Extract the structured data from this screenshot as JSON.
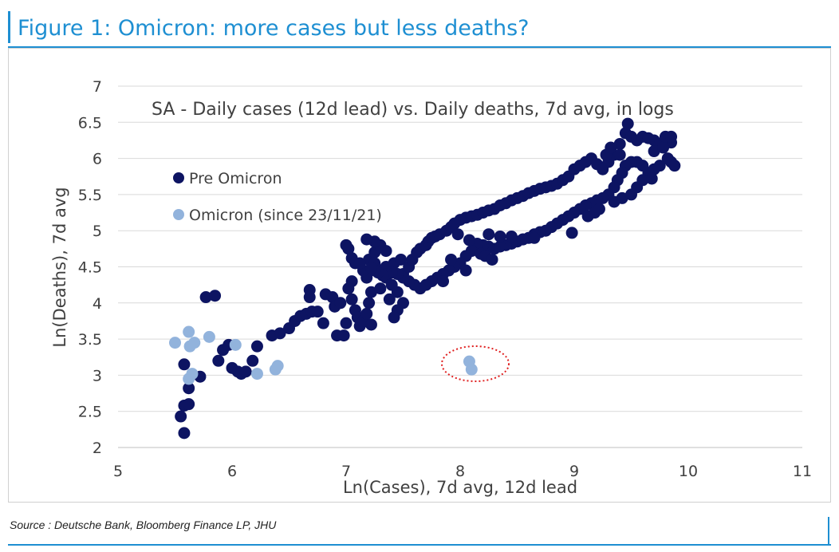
{
  "figure": {
    "title": "Figure 1: Omicron: more cases but less deaths?",
    "source": "Source : Deutsche Bank, Bloomberg Finance LP, JHU"
  },
  "colors": {
    "accent": "#1e8fd2",
    "pre_omicron": "#0d1462",
    "omicron": "#92b3dc",
    "grid": "#d9d9d9",
    "ellipse": "#e02020"
  },
  "chart_data": {
    "type": "scatter",
    "title": "SA - Daily cases (12d lead) vs. Daily deaths, 7d avg, in logs",
    "xlabel": "Ln(Cases), 7d avg, 12d lead",
    "ylabel": "Ln(Deaths), 7d avg",
    "xlim": [
      5,
      11
    ],
    "ylim": [
      2,
      7
    ],
    "xticks": [
      "5",
      "6",
      "7",
      "8",
      "9",
      "10",
      "11"
    ],
    "yticks": [
      "2",
      "2.5",
      "3",
      "3.5",
      "4",
      "4.5",
      "5",
      "5.5",
      "6",
      "6.5",
      "7"
    ],
    "grid": "horizontal",
    "legend_position": "upper-left",
    "annotation": "dotted ellipse around two Omicron points near x=8.1, y=3.1",
    "series": [
      {
        "name": "Pre Omicron",
        "color": "#0d1462",
        "points": [
          [
            5.58,
            2.2
          ],
          [
            5.55,
            2.43
          ],
          [
            5.58,
            2.58
          ],
          [
            5.62,
            2.6
          ],
          [
            5.62,
            2.82
          ],
          [
            5.72,
            2.98
          ],
          [
            5.58,
            3.15
          ],
          [
            5.77,
            4.08
          ],
          [
            5.85,
            4.1
          ],
          [
            5.88,
            3.2
          ],
          [
            5.92,
            3.35
          ],
          [
            5.97,
            3.42
          ],
          [
            6.0,
            3.1
          ],
          [
            6.05,
            3.05
          ],
          [
            6.08,
            3.02
          ],
          [
            6.12,
            3.05
          ],
          [
            6.18,
            3.2
          ],
          [
            6.22,
            3.4
          ],
          [
            6.35,
            3.55
          ],
          [
            6.42,
            3.58
          ],
          [
            6.5,
            3.65
          ],
          [
            6.55,
            3.75
          ],
          [
            6.6,
            3.82
          ],
          [
            6.65,
            3.85
          ],
          [
            6.7,
            3.88
          ],
          [
            6.75,
            3.88
          ],
          [
            6.68,
            4.18
          ],
          [
            6.68,
            4.08
          ],
          [
            6.8,
            3.72
          ],
          [
            6.82,
            4.12
          ],
          [
            6.88,
            4.08
          ],
          [
            6.9,
            3.95
          ],
          [
            6.92,
            3.55
          ],
          [
            6.98,
            3.55
          ],
          [
            6.95,
            4.0
          ],
          [
            7.0,
            3.72
          ],
          [
            7.0,
            4.8
          ],
          [
            7.02,
            4.75
          ],
          [
            7.05,
            4.62
          ],
          [
            7.08,
            4.55
          ],
          [
            7.05,
            4.3
          ],
          [
            7.02,
            4.2
          ],
          [
            7.05,
            4.05
          ],
          [
            7.08,
            3.9
          ],
          [
            7.1,
            3.8
          ],
          [
            7.12,
            3.68
          ],
          [
            7.15,
            3.75
          ],
          [
            7.18,
            3.85
          ],
          [
            7.2,
            4.0
          ],
          [
            7.22,
            4.15
          ],
          [
            7.18,
            4.35
          ],
          [
            7.15,
            4.45
          ],
          [
            7.2,
            4.6
          ],
          [
            7.25,
            4.7
          ],
          [
            7.3,
            4.8
          ],
          [
            7.35,
            4.72
          ],
          [
            7.25,
            4.55
          ],
          [
            7.3,
            4.45
          ],
          [
            7.35,
            4.35
          ],
          [
            7.4,
            4.25
          ],
          [
            7.45,
            4.15
          ],
          [
            7.5,
            4.0
          ],
          [
            7.45,
            3.9
          ],
          [
            7.42,
            3.8
          ],
          [
            7.38,
            4.05
          ],
          [
            7.3,
            4.2
          ],
          [
            7.22,
            3.7
          ],
          [
            7.25,
            4.85
          ],
          [
            7.18,
            4.88
          ],
          [
            7.12,
            4.55
          ],
          [
            7.35,
            4.5
          ],
          [
            7.42,
            4.55
          ],
          [
            7.48,
            4.6
          ],
          [
            7.5,
            4.4
          ],
          [
            7.55,
            4.5
          ],
          [
            7.58,
            4.6
          ],
          [
            7.62,
            4.7
          ],
          [
            7.65,
            4.75
          ],
          [
            7.7,
            4.8
          ],
          [
            7.72,
            4.85
          ],
          [
            7.75,
            4.9
          ],
          [
            7.78,
            4.92
          ],
          [
            7.82,
            4.95
          ],
          [
            7.88,
            5.0
          ],
          [
            7.92,
            5.05
          ],
          [
            7.95,
            5.1
          ],
          [
            8.0,
            5.15
          ],
          [
            8.05,
            5.18
          ],
          [
            8.1,
            5.2
          ],
          [
            8.15,
            5.22
          ],
          [
            8.2,
            5.25
          ],
          [
            8.25,
            5.28
          ],
          [
            8.3,
            5.3
          ],
          [
            8.35,
            5.35
          ],
          [
            8.4,
            5.38
          ],
          [
            8.45,
            5.42
          ],
          [
            8.5,
            5.45
          ],
          [
            8.55,
            5.48
          ],
          [
            8.6,
            5.52
          ],
          [
            8.65,
            5.55
          ],
          [
            8.7,
            5.58
          ],
          [
            8.75,
            5.6
          ],
          [
            8.8,
            5.62
          ],
          [
            8.85,
            5.65
          ],
          [
            8.9,
            5.7
          ],
          [
            8.95,
            5.75
          ],
          [
            9.0,
            5.85
          ],
          [
            9.05,
            5.9
          ],
          [
            9.1,
            5.95
          ],
          [
            9.15,
            6.0
          ],
          [
            9.2,
            5.92
          ],
          [
            9.25,
            5.85
          ],
          [
            9.3,
            5.95
          ],
          [
            9.35,
            6.05
          ],
          [
            9.4,
            6.2
          ],
          [
            9.45,
            6.35
          ],
          [
            9.47,
            6.48
          ],
          [
            9.5,
            6.3
          ],
          [
            9.55,
            6.25
          ],
          [
            9.6,
            6.3
          ],
          [
            9.65,
            6.28
          ],
          [
            9.7,
            6.25
          ],
          [
            9.75,
            6.2
          ],
          [
            9.8,
            6.25
          ],
          [
            9.85,
            6.22
          ],
          [
            9.82,
            6.0
          ],
          [
            9.85,
            5.95
          ],
          [
            9.88,
            5.9
          ],
          [
            9.75,
            5.9
          ],
          [
            9.7,
            5.85
          ],
          [
            9.65,
            5.8
          ],
          [
            9.68,
            5.72
          ],
          [
            9.6,
            5.9
          ],
          [
            9.55,
            5.95
          ],
          [
            9.5,
            5.95
          ],
          [
            9.45,
            5.9
          ],
          [
            9.42,
            5.8
          ],
          [
            9.38,
            5.7
          ],
          [
            9.35,
            5.6
          ],
          [
            9.3,
            5.5
          ],
          [
            9.25,
            5.45
          ],
          [
            9.2,
            5.42
          ],
          [
            9.15,
            5.38
          ],
          [
            9.1,
            5.35
          ],
          [
            9.05,
            5.3
          ],
          [
            9.0,
            5.25
          ],
          [
            8.95,
            5.2
          ],
          [
            8.9,
            5.15
          ],
          [
            8.85,
            5.1
          ],
          [
            8.8,
            5.05
          ],
          [
            8.75,
            5.0
          ],
          [
            8.7,
            4.98
          ],
          [
            8.65,
            4.95
          ],
          [
            8.6,
            4.9
          ],
          [
            8.55,
            4.88
          ],
          [
            8.5,
            4.85
          ],
          [
            8.45,
            4.82
          ],
          [
            8.4,
            4.8
          ],
          [
            8.35,
            4.78
          ],
          [
            8.3,
            4.75
          ],
          [
            8.25,
            4.78
          ],
          [
            8.2,
            4.8
          ],
          [
            8.15,
            4.82
          ],
          [
            8.1,
            4.72
          ],
          [
            8.05,
            4.65
          ],
          [
            8.0,
            4.55
          ],
          [
            7.95,
            4.5
          ],
          [
            7.9,
            4.45
          ],
          [
            7.85,
            4.4
          ],
          [
            7.8,
            4.35
          ],
          [
            7.75,
            4.3
          ],
          [
            7.7,
            4.25
          ],
          [
            7.65,
            4.2
          ],
          [
            7.6,
            4.25
          ],
          [
            7.55,
            4.3
          ],
          [
            7.5,
            4.35
          ],
          [
            7.45,
            4.4
          ],
          [
            7.4,
            4.42
          ],
          [
            7.35,
            4.4
          ],
          [
            7.32,
            4.38
          ],
          [
            7.28,
            4.42
          ],
          [
            7.25,
            4.45
          ],
          [
            7.22,
            4.48
          ],
          [
            8.25,
            4.95
          ],
          [
            8.35,
            4.92
          ],
          [
            8.45,
            4.92
          ],
          [
            8.55,
            4.88
          ],
          [
            8.65,
            4.9
          ],
          [
            8.98,
            4.97
          ],
          [
            9.12,
            5.2
          ],
          [
            9.18,
            5.25
          ],
          [
            9.22,
            5.3
          ],
          [
            9.35,
            5.4
          ],
          [
            9.42,
            5.45
          ],
          [
            9.5,
            5.5
          ],
          [
            9.55,
            5.6
          ],
          [
            9.6,
            5.7
          ],
          [
            9.28,
            6.05
          ],
          [
            9.32,
            6.15
          ],
          [
            9.4,
            6.05
          ],
          [
            9.7,
            6.1
          ],
          [
            9.78,
            6.15
          ],
          [
            9.8,
            6.3
          ],
          [
            9.85,
            6.3
          ],
          [
            7.98,
            4.95
          ],
          [
            8.08,
            4.87
          ],
          [
            8.18,
            4.68
          ],
          [
            8.22,
            4.65
          ],
          [
            8.28,
            4.6
          ],
          [
            7.92,
            4.6
          ],
          [
            8.05,
            4.45
          ],
          [
            7.85,
            4.3
          ]
        ]
      },
      {
        "name": "Omicron (since 23/11/21)",
        "color": "#92b3dc",
        "points": [
          [
            5.5,
            3.45
          ],
          [
            5.62,
            3.6
          ],
          [
            5.63,
            3.4
          ],
          [
            5.67,
            3.45
          ],
          [
            5.8,
            3.53
          ],
          [
            6.03,
            3.42
          ],
          [
            5.62,
            2.95
          ],
          [
            5.65,
            3.02
          ],
          [
            6.22,
            3.02
          ],
          [
            6.38,
            3.08
          ],
          [
            6.4,
            3.13
          ],
          [
            8.08,
            3.19
          ],
          [
            8.1,
            3.08
          ]
        ]
      }
    ]
  }
}
